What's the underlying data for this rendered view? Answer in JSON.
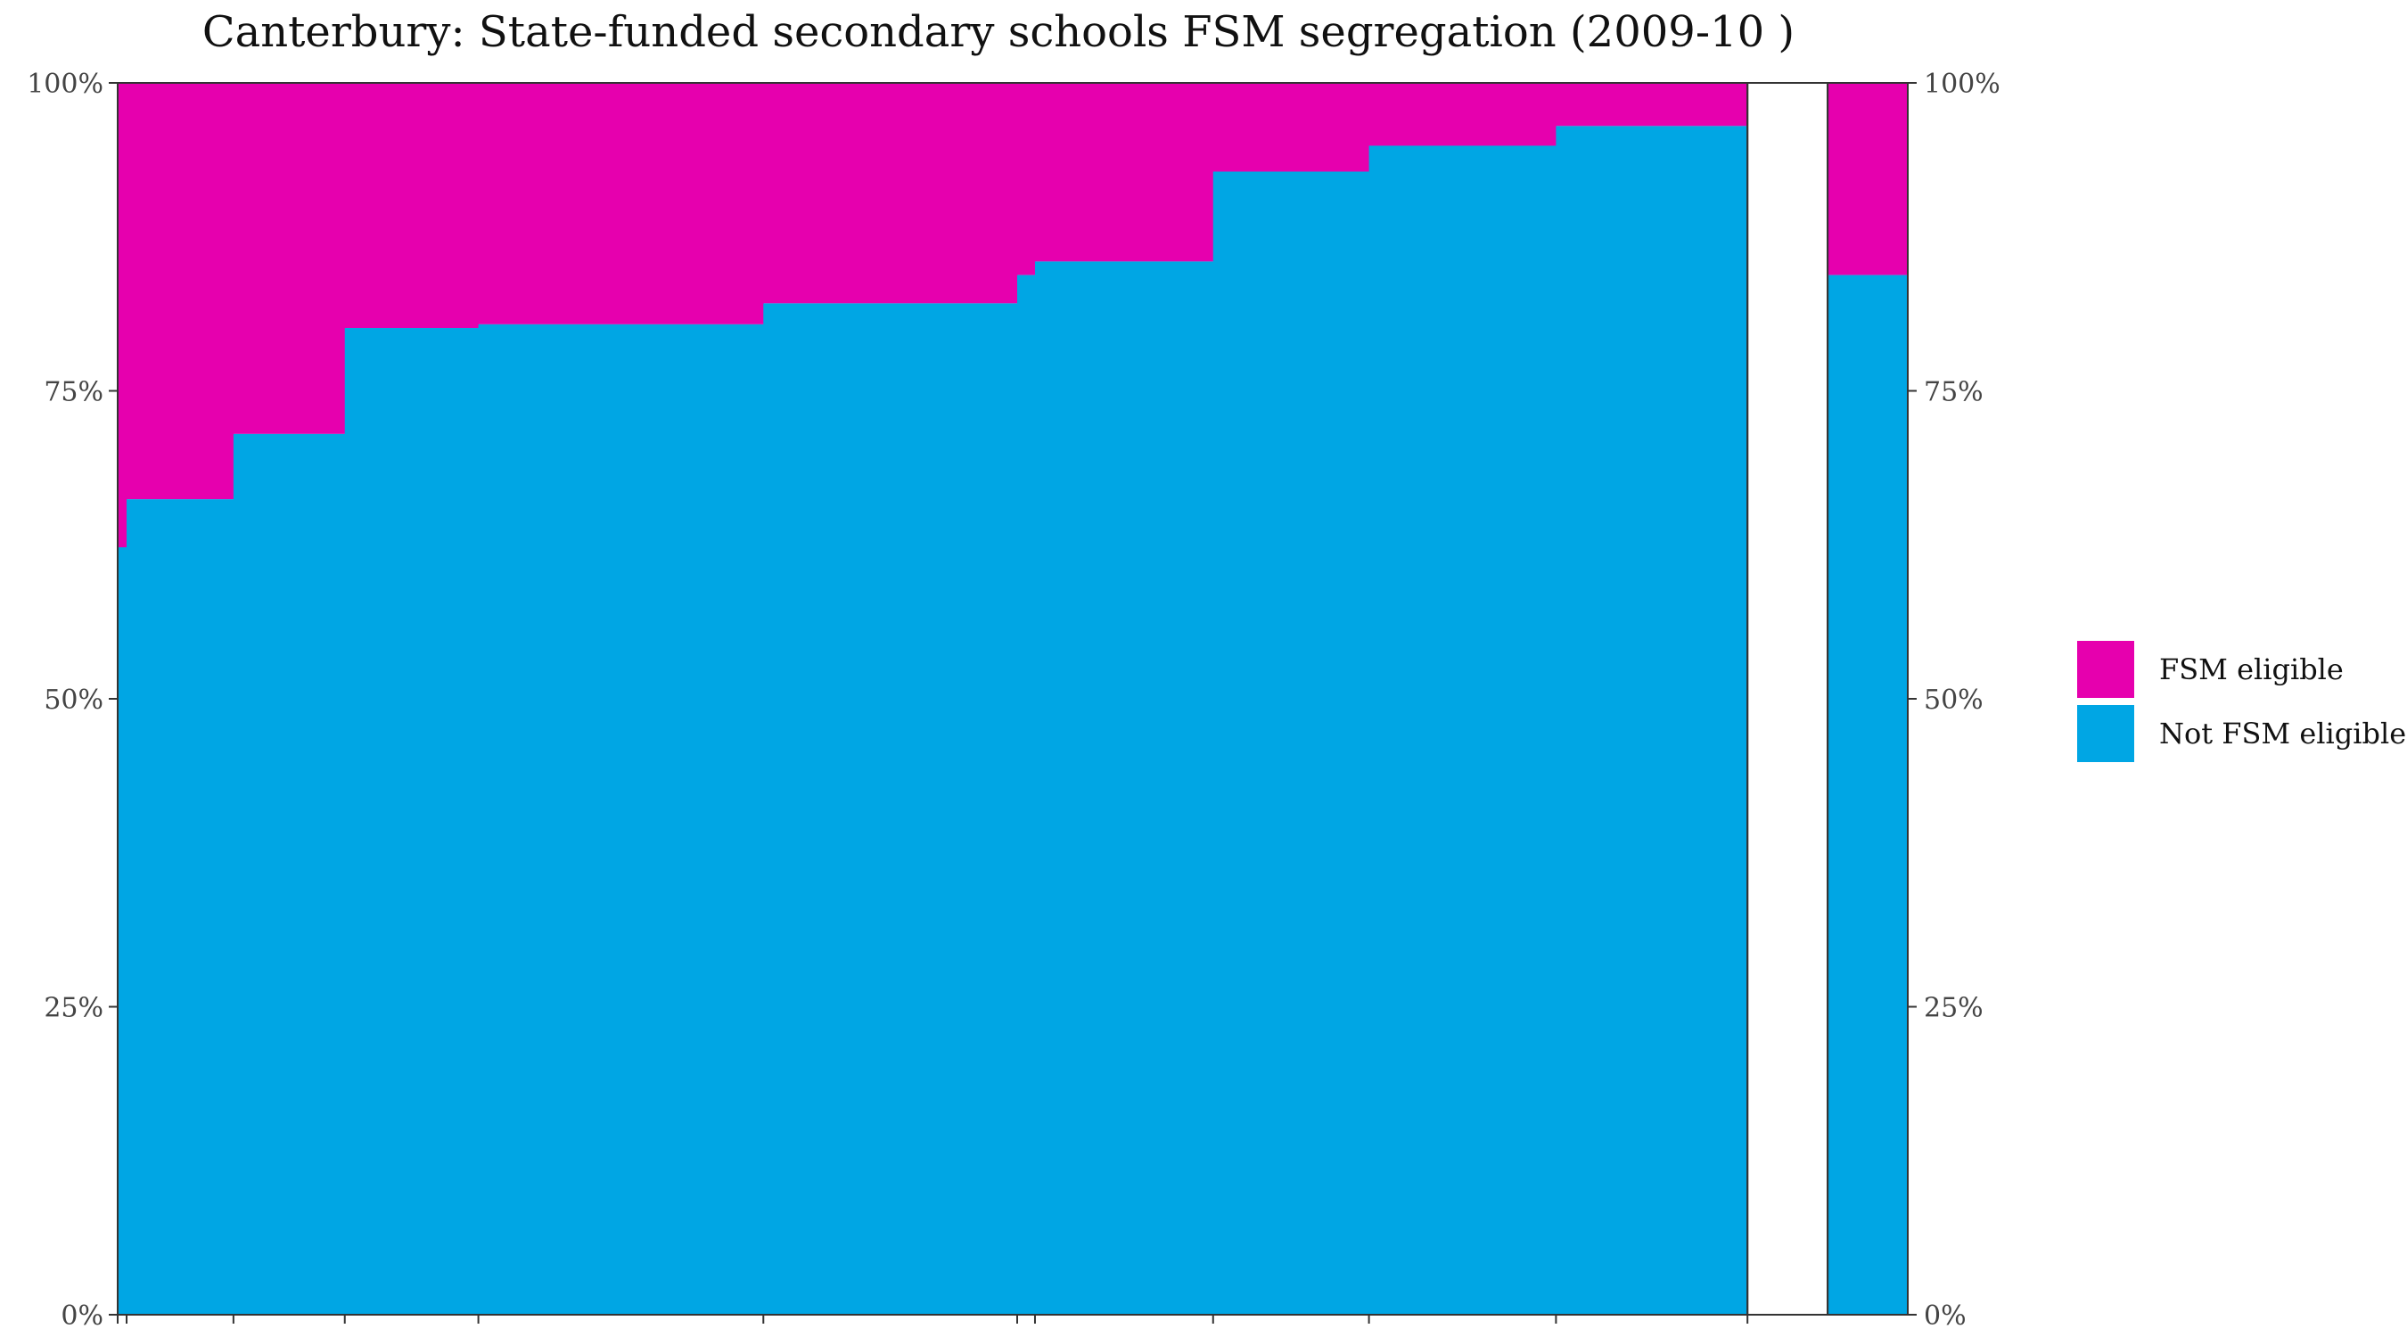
{
  "chart_data": {
    "type": "bar",
    "subtype": "stacked-variable-width",
    "title": "Canterbury: State-funded secondary schools FSM segregation (2009-10 )",
    "xlabel": "",
    "ylabel": "",
    "ylim": [
      0,
      100
    ],
    "yticks": [
      "0%",
      "25%",
      "50%",
      "75%",
      "100%"
    ],
    "legend_position": "right",
    "series_colors": {
      "fsm": "#e600ae",
      "not_fsm": "#00a6e4"
    },
    "series": [
      {
        "name": "FSM eligible",
        "key": "fsm"
      },
      {
        "name": "Not FSM eligible",
        "key": "not_fsm"
      }
    ],
    "schools": [
      {
        "width": 1,
        "not_fsm": 62.3
      },
      {
        "width": 12,
        "not_fsm": 66.2
      },
      {
        "width": 12.5,
        "not_fsm": 71.5
      },
      {
        "width": 15,
        "not_fsm": 80.1
      },
      {
        "width": 32,
        "not_fsm": 80.4
      },
      {
        "width": 28.5,
        "not_fsm": 82.1
      },
      {
        "width": 2,
        "not_fsm": 84.4
      },
      {
        "width": 20,
        "not_fsm": 85.5
      },
      {
        "width": 17.5,
        "not_fsm": 92.8
      },
      {
        "width": 21,
        "not_fsm": 94.9
      },
      {
        "width": 21.5,
        "not_fsm": 96.5
      }
    ],
    "gap_width": 9,
    "overall": {
      "width": 9,
      "not_fsm": 84.4
    }
  }
}
